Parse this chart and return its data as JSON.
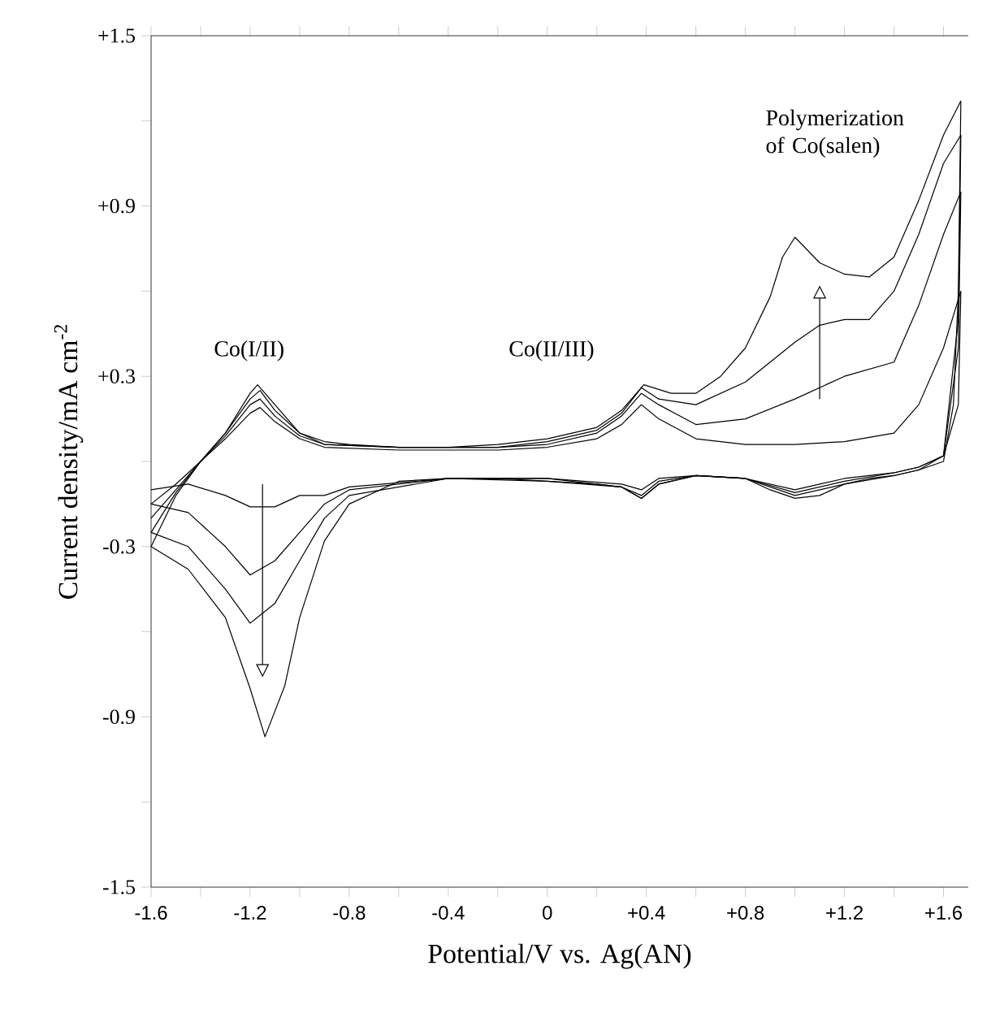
{
  "chart_data": {
    "type": "line",
    "xlabel": "Potential/V vs. Ag(AN)",
    "ylabel": "Current density/mA cm$^{-2}$",
    "xlim": [
      -1.6,
      1.7
    ],
    "ylim": [
      -1.5,
      1.5
    ],
    "xticks": [
      {
        "value": -1.6,
        "label": "-1.6"
      },
      {
        "value": -1.4,
        "label": null
      },
      {
        "value": -1.2,
        "label": "-1.2"
      },
      {
        "value": -1.0,
        "label": null
      },
      {
        "value": -0.8,
        "label": "-0.8"
      },
      {
        "value": -0.6,
        "label": null
      },
      {
        "value": -0.4,
        "label": "-0.4"
      },
      {
        "value": -0.2,
        "label": null
      },
      0,
      {
        "value": 0.2,
        "label": null
      },
      {
        "value": 0.4,
        "label": "+0.4"
      },
      {
        "value": 0.6,
        "label": null
      },
      {
        "value": 0.8,
        "label": "+0.8"
      },
      {
        "value": 1.0,
        "label": null
      },
      {
        "value": 1.2,
        "label": "+1.2"
      },
      {
        "value": 1.4,
        "label": null
      },
      {
        "value": 1.6,
        "label": "+1.6"
      }
    ],
    "yticks": [
      {
        "value": 1.5,
        "label": "+1.5"
      },
      {
        "value": 1.2,
        "label": null
      },
      {
        "value": 0.9,
        "label": "+0.9"
      },
      {
        "value": 0.6,
        "label": null
      },
      {
        "value": 0.3,
        "label": "+0.3"
      },
      {
        "value": 0,
        "label": null
      },
      -0.3,
      {
        "value": -0.6,
        "label": null
      },
      -0.9,
      {
        "value": -1.2,
        "label": null
      },
      -1.5
    ],
    "annotations": [
      "Co(I/II)",
      "Co(II/III)",
      "Polymerization of Co(salen)"
    ],
    "grid": false,
    "marker": "none",
    "line_style": "solid",
    "series": [
      {
        "color": "#000000",
        "x": [
          -1.6,
          -1.5,
          -1.4,
          -1.3,
          -1.2,
          -1.16,
          -1.1,
          -1.0,
          -0.9,
          -0.6,
          -0.2,
          0,
          0.2,
          0.3,
          0.38,
          0.45,
          0.6,
          0.8,
          1.0,
          1.2,
          1.4,
          1.5,
          1.6,
          1.67
        ],
        "values": [
          -0.15,
          -0.08,
          0.0,
          0.08,
          0.17,
          0.19,
          0.14,
          0.08,
          0.05,
          0.04,
          0.04,
          0.05,
          0.08,
          0.13,
          0.2,
          0.15,
          0.08,
          0.06,
          0.06,
          0.07,
          0.1,
          0.2,
          0.4,
          0.6
        ]
      },
      {
        "color": "#000000",
        "x": [
          1.67,
          1.66,
          1.6,
          1.5,
          1.4,
          1.2,
          1.0,
          0.8,
          0.6,
          0.45,
          0.38,
          0.3,
          0,
          -0.4,
          -0.8,
          -0.9,
          -1.0,
          -1.1,
          -1.2,
          -1.3,
          -1.45,
          -1.6
        ],
        "values": [
          0.6,
          0.2,
          0.02,
          -0.02,
          -0.04,
          -0.06,
          -0.1,
          -0.06,
          -0.05,
          -0.06,
          -0.1,
          -0.08,
          -0.06,
          -0.06,
          -0.09,
          -0.12,
          -0.12,
          -0.16,
          -0.16,
          -0.12,
          -0.08,
          -0.1
        ]
      },
      {
        "color": "#000000",
        "x": [
          -1.6,
          -1.5,
          -1.4,
          -1.3,
          -1.2,
          -1.16,
          -1.1,
          -1.0,
          -0.9,
          -0.6,
          -0.2,
          0,
          0.2,
          0.3,
          0.38,
          0.45,
          0.6,
          0.8,
          1.0,
          1.2,
          1.4,
          1.5,
          1.6,
          1.67
        ],
        "values": [
          -0.2,
          -0.1,
          0.0,
          0.09,
          0.2,
          0.22,
          0.16,
          0.09,
          0.06,
          0.05,
          0.05,
          0.06,
          0.1,
          0.16,
          0.24,
          0.2,
          0.13,
          0.15,
          0.22,
          0.3,
          0.35,
          0.55,
          0.8,
          0.95
        ]
      },
      {
        "color": "#000000",
        "x": [
          1.67,
          1.66,
          1.6,
          1.5,
          1.4,
          1.2,
          1.0,
          0.8,
          0.6,
          0.45,
          0.38,
          0.3,
          0,
          -0.4,
          -0.8,
          -0.9,
          -1.0,
          -1.1,
          -1.2,
          -1.3,
          -1.45,
          -1.6
        ],
        "values": [
          0.95,
          0.4,
          0.02,
          -0.02,
          -0.04,
          -0.07,
          -0.11,
          -0.06,
          -0.05,
          -0.07,
          -0.12,
          -0.09,
          -0.06,
          -0.06,
          -0.1,
          -0.15,
          -0.25,
          -0.35,
          -0.4,
          -0.3,
          -0.18,
          -0.15
        ]
      },
      {
        "color": "#000000",
        "x": [
          -1.6,
          -1.5,
          -1.4,
          -1.3,
          -1.2,
          -1.16,
          -1.1,
          -1.0,
          -0.9,
          -0.6,
          -0.2,
          0,
          0.2,
          0.3,
          0.38,
          0.45,
          0.6,
          0.8,
          1.0,
          1.1,
          1.2,
          1.3,
          1.4,
          1.5,
          1.6,
          1.67
        ],
        "values": [
          -0.25,
          -0.11,
          0.0,
          0.1,
          0.22,
          0.25,
          0.18,
          0.1,
          0.06,
          0.05,
          0.05,
          0.07,
          0.11,
          0.17,
          0.26,
          0.22,
          0.2,
          0.28,
          0.42,
          0.48,
          0.5,
          0.5,
          0.6,
          0.8,
          1.05,
          1.15
        ]
      },
      {
        "color": "#000000",
        "x": [
          1.67,
          1.66,
          1.6,
          1.5,
          1.4,
          1.2,
          1.0,
          0.8,
          0.6,
          0.45,
          0.38,
          0.3,
          0,
          -0.4,
          -0.8,
          -0.9,
          -1.0,
          -1.1,
          -1.2,
          -1.3,
          -1.45,
          -1.6
        ],
        "values": [
          1.15,
          0.5,
          0.02,
          -0.03,
          -0.05,
          -0.08,
          -0.12,
          -0.06,
          -0.05,
          -0.08,
          -0.13,
          -0.09,
          -0.07,
          -0.06,
          -0.12,
          -0.2,
          -0.35,
          -0.5,
          -0.57,
          -0.45,
          -0.3,
          -0.25
        ]
      },
      {
        "color": "#000000",
        "x": [
          -1.6,
          -1.5,
          -1.4,
          -1.3,
          -1.2,
          -1.17,
          -1.1,
          -1.0,
          -0.9,
          -0.8,
          -0.6,
          -0.4,
          -0.2,
          0,
          0.2,
          0.3,
          0.39,
          0.5,
          0.6,
          0.7,
          0.8,
          0.9,
          0.95,
          1.0,
          1.1,
          1.2,
          1.3,
          1.4,
          1.5,
          1.6,
          1.67
        ],
        "values": [
          -0.3,
          -0.12,
          0.0,
          0.1,
          0.24,
          0.27,
          0.2,
          0.1,
          0.07,
          0.06,
          0.05,
          0.05,
          0.06,
          0.08,
          0.12,
          0.18,
          0.27,
          0.24,
          0.24,
          0.3,
          0.4,
          0.58,
          0.72,
          0.79,
          0.7,
          0.66,
          0.65,
          0.72,
          0.92,
          1.15,
          1.27
        ]
      },
      {
        "color": "#000000",
        "x": [
          1.67,
          1.66,
          1.64,
          1.6,
          1.5,
          1.4,
          1.3,
          1.2,
          1.1,
          1.0,
          0.9,
          0.8,
          0.6,
          0.45,
          0.38,
          0.3,
          0.2,
          0,
          -0.2,
          -0.4,
          -0.6,
          -0.8,
          -0.9,
          -1.0,
          -1.06,
          -1.14,
          -1.2,
          -1.3,
          -1.45,
          -1.6
        ],
        "values": [
          1.27,
          0.6,
          0.2,
          0.0,
          -0.03,
          -0.05,
          -0.06,
          -0.08,
          -0.12,
          -0.13,
          -0.1,
          -0.06,
          -0.05,
          -0.08,
          -0.13,
          -0.09,
          -0.08,
          -0.07,
          -0.06,
          -0.06,
          -0.07,
          -0.15,
          -0.28,
          -0.55,
          -0.79,
          -0.97,
          -0.8,
          -0.55,
          -0.38,
          -0.3
        ]
      }
    ]
  }
}
